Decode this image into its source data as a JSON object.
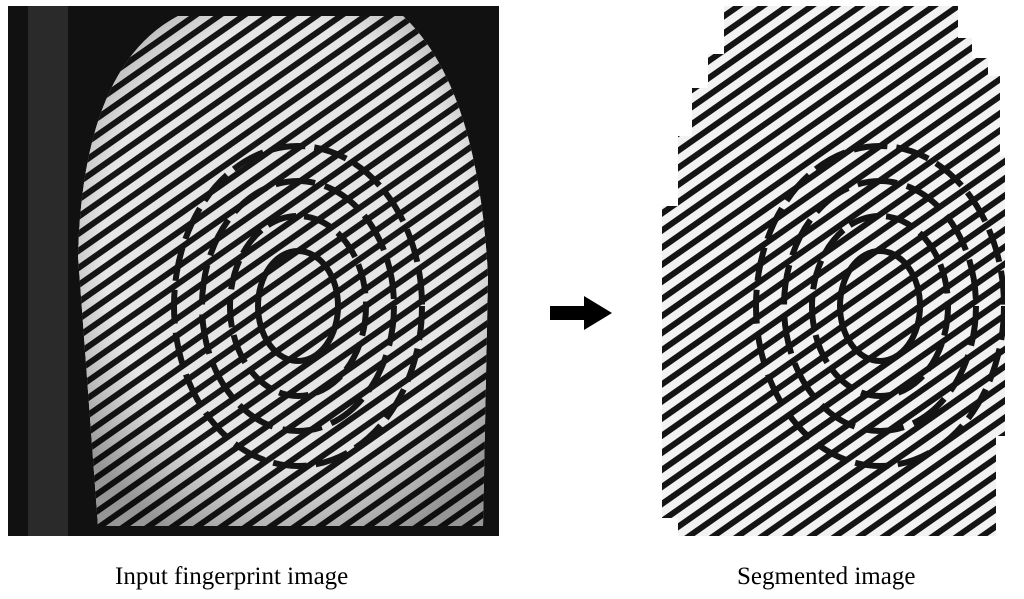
{
  "captions": {
    "input": "Input fingerprint image",
    "segmented": "Segmented image"
  },
  "icons": {
    "arrow": "right-arrow-icon"
  },
  "colors": {
    "ridge": "#141414",
    "valley": "#e9e9e9",
    "background": "#111111"
  }
}
